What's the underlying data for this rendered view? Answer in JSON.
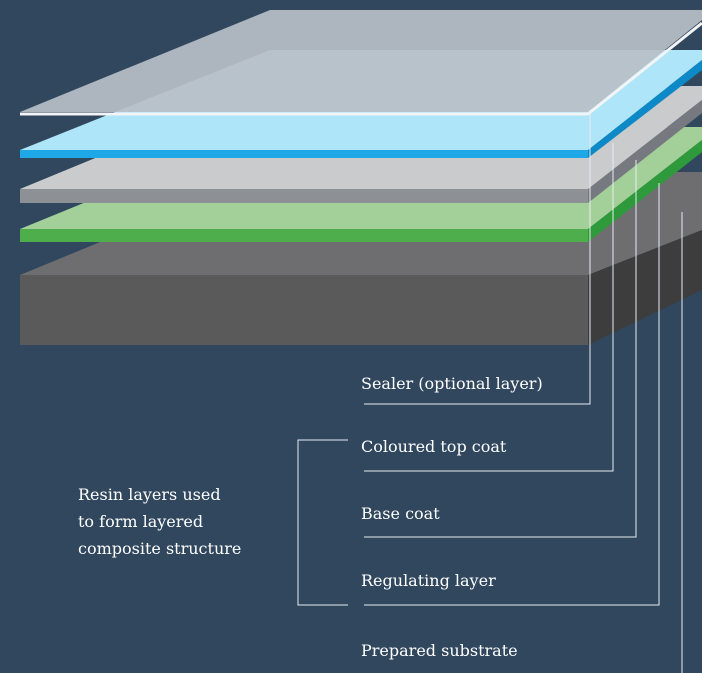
{
  "diagram": {
    "background_color": "#30475e",
    "layers": [
      {
        "name": "Sealer (optional layer)",
        "color": "#b9bfc7"
      },
      {
        "name": "Coloured top coat",
        "color": "#3ab8ee"
      },
      {
        "name": "Base coat",
        "color": "#c9cbcd"
      },
      {
        "name": "Regulating layer",
        "color": "#a3cf98"
      },
      {
        "name": "Prepared substrate",
        "color": "#5a5a5b"
      }
    ],
    "labels": {
      "sealer": "Sealer (optional layer)",
      "top_coat": "Coloured top coat",
      "base_coat": "Base coat",
      "regulating": "Regulating layer",
      "substrate": "Prepared substrate"
    },
    "group_label": [
      "Resin layers used",
      "to form layered",
      "composite structure"
    ]
  }
}
